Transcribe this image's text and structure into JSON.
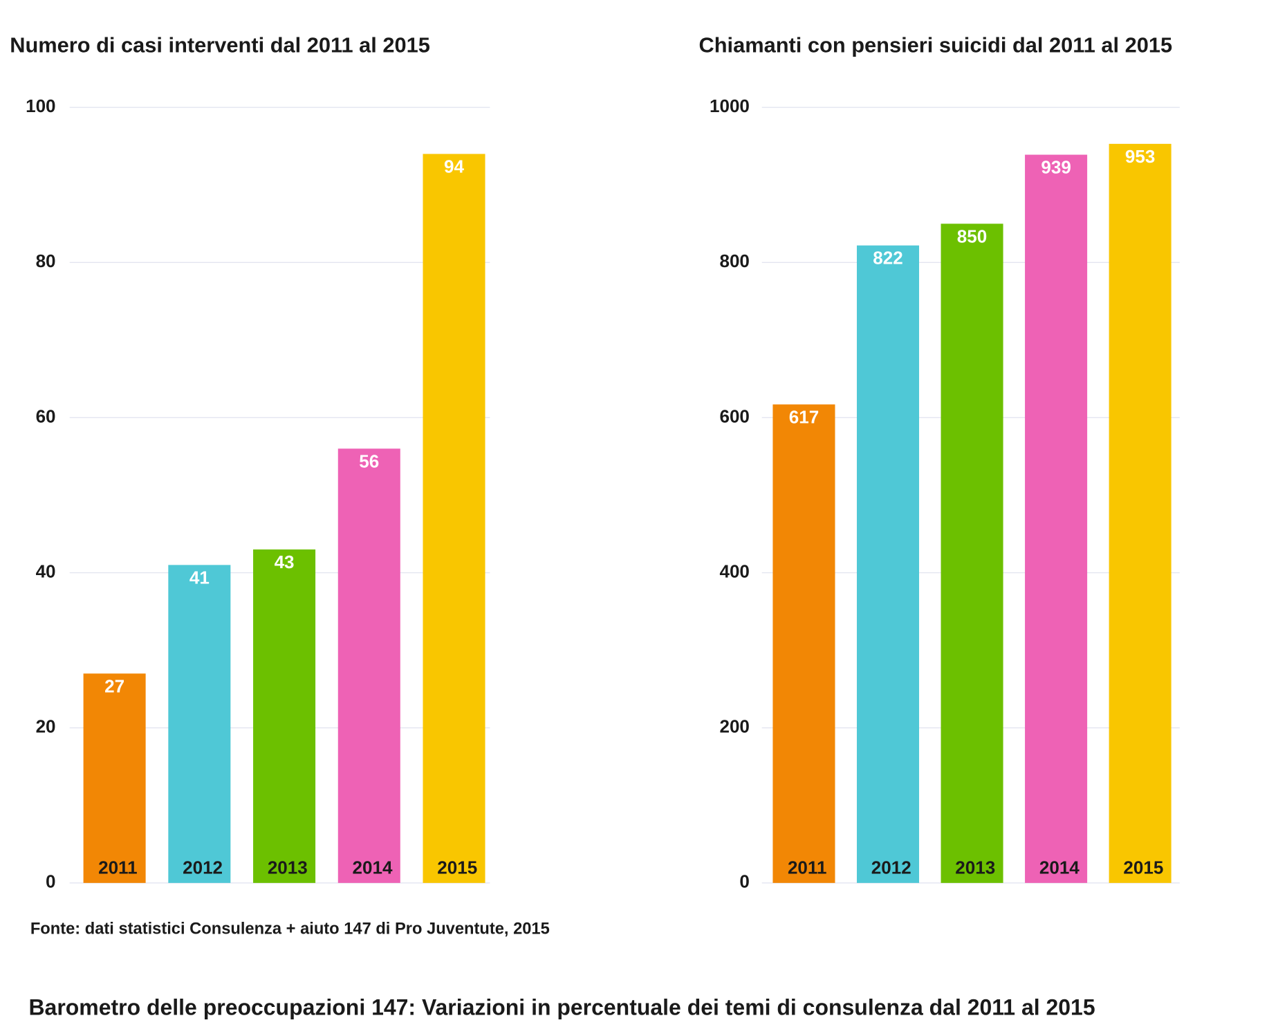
{
  "chart_data": [
    {
      "type": "bar",
      "title": "Numero di casi interventi dal 2011 al 2015",
      "categories": [
        "2011",
        "2012",
        "2013",
        "2014",
        "2015"
      ],
      "values": [
        27,
        41,
        43,
        56,
        94
      ],
      "colors": [
        "#f28705",
        "#4fc8d6",
        "#6cc000",
        "#ee62b5",
        "#f9c600"
      ],
      "ylim": [
        0,
        100
      ],
      "yticks": [
        0,
        20,
        40,
        60,
        80,
        100
      ],
      "grid": true
    },
    {
      "type": "bar",
      "title": "Chiamanti con pensieri suicidi dal 2011 al 2015",
      "categories": [
        "2011",
        "2012",
        "2013",
        "2014",
        "2015"
      ],
      "values": [
        617,
        822,
        850,
        939,
        953
      ],
      "colors": [
        "#f28705",
        "#4fc8d6",
        "#6cc000",
        "#ee62b5",
        "#f9c600"
      ],
      "ylim": [
        0,
        1000
      ],
      "yticks": [
        0,
        200,
        400,
        600,
        800,
        1000
      ],
      "grid": true
    }
  ],
  "source": "Fonte: dati statistici Consulenza + aiuto 147 di Pro Juventute, 2015",
  "footer": "Barometro delle preoccupazioni 147: Variazioni in percentuale dei temi di consulenza dal 2011 al 2015"
}
